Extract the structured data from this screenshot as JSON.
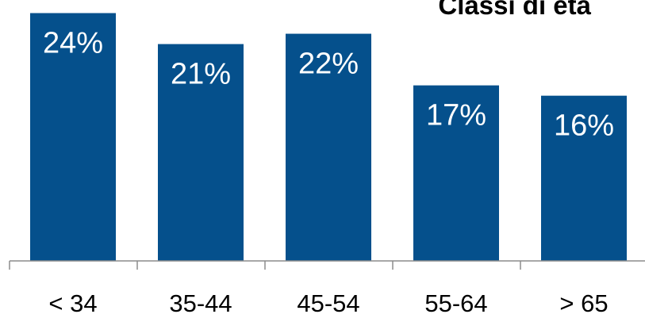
{
  "chart_data": {
    "type": "bar",
    "title": "Classi di età",
    "xlabel": "",
    "ylabel": "",
    "categories": [
      "< 34",
      "35-44",
      "45-54",
      "55-64",
      "> 65"
    ],
    "values": [
      24,
      21,
      22,
      17,
      16
    ],
    "data_labels": [
      "24%",
      "21%",
      "22%",
      "17%",
      "16%"
    ],
    "unit": "%",
    "ylim": [
      0,
      24.5
    ],
    "grid": false,
    "legend": "none",
    "colors": {
      "bar": "#05508C",
      "data_label": "#FFFFFF",
      "axis": "#8C8C8C"
    }
  }
}
